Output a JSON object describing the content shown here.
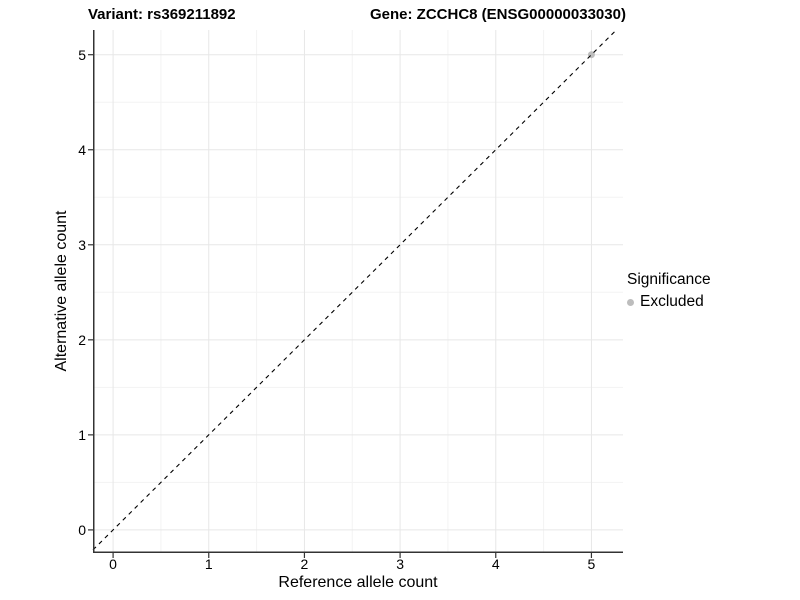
{
  "titles": {
    "left": "Variant: rs369211892",
    "right": "Gene: ZCCHC8 (ENSG00000033030)"
  },
  "chart_data": {
    "type": "scatter",
    "title_left": "Variant: rs369211892",
    "title_right": "Gene: ZCCHC8 (ENSG00000033030)",
    "xlabel": "Reference allele count",
    "ylabel": "Alternative allele count",
    "xlim": [
      -0.21,
      5.33
    ],
    "ylim": [
      -0.243,
      5.26
    ],
    "x_ticks": [
      0,
      1,
      2,
      3,
      4,
      5
    ],
    "y_ticks": [
      0,
      1,
      2,
      3,
      4,
      5
    ],
    "x_minor_ticks": [
      0.5,
      1.5,
      2.5,
      3.5,
      4.5
    ],
    "y_minor_ticks": [
      0.5,
      1.5,
      2.5,
      3.5,
      4.5
    ],
    "grid": "major+minor",
    "reference_line": {
      "equation": "y = x",
      "style": "dashed",
      "color": "#000000"
    },
    "series": [
      {
        "name": "Excluded",
        "color": "#bdbdbd",
        "points": [
          [
            5,
            5
          ]
        ]
      }
    ],
    "legend": {
      "title": "Significance",
      "position": "right",
      "entries": [
        {
          "label": "Excluded",
          "color": "#bdbdbd"
        }
      ]
    }
  },
  "colors": {
    "grid_major": "#e7e7e7",
    "grid_minor": "#f3f3f3",
    "axis_line": "#333333",
    "panel_bg": "#ffffff",
    "text": "#000000"
  }
}
